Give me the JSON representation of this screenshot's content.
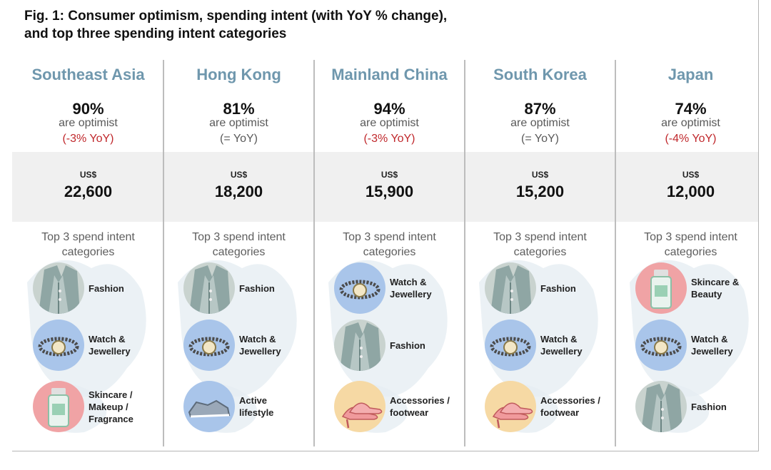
{
  "title": "Fig. 1: Consumer optimism, spending intent (with YoY % change),\nand top three spending intent categories",
  "colors": {
    "region": "#6f97ad",
    "negative": "#c0282c",
    "band": "#f0f0f0"
  },
  "chart_data": {
    "type": "table",
    "columns": [
      "Southeast Asia",
      "Hong Kong",
      "Mainland China",
      "South Korea",
      "Japan"
    ],
    "optimist_pct": [
      90,
      81,
      94,
      87,
      74
    ],
    "spending_intent_usd": [
      22600,
      18200,
      15900,
      15200,
      12000
    ]
  },
  "regions": [
    {
      "name": "Southeast Asia",
      "pct": "90%",
      "optimist_label": "are optimist",
      "yoy": "(-3% YoY)",
      "yoy_type": "neg",
      "currency": "US$",
      "amount": "22,600",
      "top3_label": "Top 3 spend intent categories",
      "categories": [
        {
          "label": "Fashion",
          "icon": "fashion-icon"
        },
        {
          "label": "Watch &\nJewellery",
          "icon": "watch-icon"
        },
        {
          "label": "Skincare /\nMakeup /\nFragrance",
          "icon": "skincare-icon"
        }
      ]
    },
    {
      "name": "Hong Kong",
      "pct": "81%",
      "optimist_label": "are optimist",
      "yoy": "(= YoY)",
      "yoy_type": "flat",
      "currency": "US$",
      "amount": "18,200",
      "top3_label": "Top 3 spend intent categories",
      "categories": [
        {
          "label": "Fashion",
          "icon": "fashion-icon"
        },
        {
          "label": "Watch &\nJewellery",
          "icon": "watch-icon"
        },
        {
          "label": "Active\nlifestyle",
          "icon": "sneaker-icon"
        }
      ]
    },
    {
      "name": "Mainland China",
      "pct": "94%",
      "optimist_label": "are optimist",
      "yoy": "(-3% YoY)",
      "yoy_type": "neg",
      "currency": "US$",
      "amount": "15,900",
      "top3_label": "Top 3 spend intent categories",
      "categories": [
        {
          "label": "Watch &\nJewellery",
          "icon": "watch-icon"
        },
        {
          "label": "Fashion",
          "icon": "fashion-icon"
        },
        {
          "label": "Accessories /\nfootwear",
          "icon": "heels-icon"
        }
      ]
    },
    {
      "name": "South Korea",
      "pct": "87%",
      "optimist_label": "are optimist",
      "yoy": "(= YoY)",
      "yoy_type": "flat",
      "currency": "US$",
      "amount": "15,200",
      "top3_label": "Top 3 spend intent categories",
      "categories": [
        {
          "label": "Fashion",
          "icon": "fashion-icon"
        },
        {
          "label": "Watch &\nJewellery",
          "icon": "watch-icon"
        },
        {
          "label": "Accessories /\nfootwear",
          "icon": "heels-icon"
        }
      ]
    },
    {
      "name": "Japan",
      "pct": "74%",
      "optimist_label": "are optimist",
      "yoy": "(-4% YoY)",
      "yoy_type": "neg",
      "currency": "US$",
      "amount": "12,000",
      "top3_label": "Top 3 spend intent categories",
      "categories": [
        {
          "label": "Skincare &\nBeauty",
          "icon": "skincare-icon"
        },
        {
          "label": "Watch &\nJewellery",
          "icon": "watch-icon"
        },
        {
          "label": "Fashion",
          "icon": "fashion-icon"
        }
      ]
    }
  ]
}
